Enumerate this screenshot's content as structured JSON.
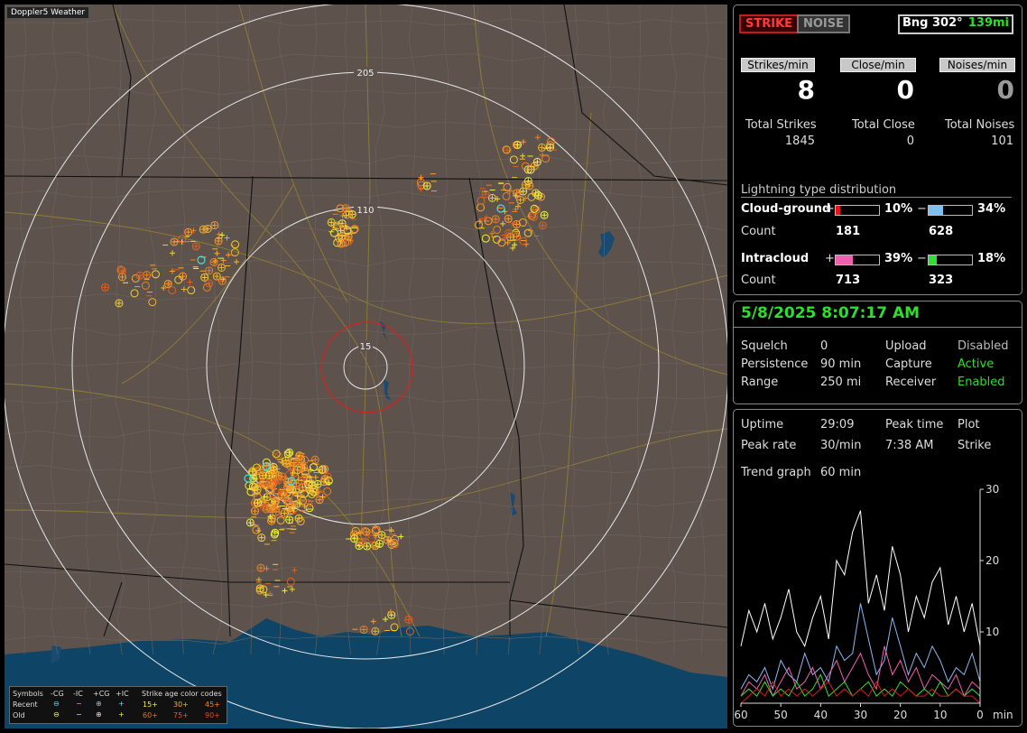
{
  "app": {
    "title": "Doppler5 Weather"
  },
  "map": {
    "range_rings": [
      "205",
      "110",
      "15"
    ],
    "legend": {
      "symbols_label": "Symbols",
      "cols": [
        "-CG",
        "-IC",
        "+CG",
        "+IC"
      ],
      "age_title": "Strike age color codes",
      "recent_label": "Recent",
      "old_label": "Old",
      "recent_ages": [
        "15+",
        "30+",
        "45+"
      ],
      "old_ages": [
        "60+",
        "75+",
        "90+"
      ]
    }
  },
  "status": {
    "strike_label": "STRIKE",
    "noise_label": "NOISE",
    "bearing": "Bng 302°",
    "distance": "139mi",
    "rates": [
      {
        "label": "Strikes/min",
        "value": "8",
        "color": "#ffffff"
      },
      {
        "label": "Close/min",
        "value": "0",
        "color": "#ffffff"
      },
      {
        "label": "Noises/min",
        "value": "0",
        "color": "#9a9a9a"
      }
    ],
    "totals": [
      {
        "label": "Total Strikes",
        "value": "1845"
      },
      {
        "label": "Total Close",
        "value": "0"
      },
      {
        "label": "Total Noises",
        "value": "101"
      }
    ]
  },
  "distribution": {
    "title": "Lightning type distribution",
    "cloud_ground": {
      "label": "Cloud-ground",
      "pos_sign": "+",
      "pos_pct": "10%",
      "pos_frac": 0.1,
      "pos_color": "#e01818",
      "neg_sign": "−",
      "neg_pct": "34%",
      "neg_frac": 0.34,
      "neg_color": "#7ec0f0",
      "count_label": "Count",
      "pos_count": "181",
      "neg_count": "628"
    },
    "intracloud": {
      "label": "Intracloud",
      "pos_sign": "+",
      "pos_pct": "39%",
      "pos_frac": 0.39,
      "pos_color": "#f060b0",
      "neg_sign": "−",
      "neg_pct": "18%",
      "neg_frac": 0.18,
      "neg_color": "#30e030",
      "count_label": "Count",
      "pos_count": "713",
      "neg_count": "323"
    }
  },
  "settings": {
    "datetime": "5/8/2025 8:07:17 AM",
    "rows": [
      {
        "k1": "Squelch",
        "v1": "0",
        "k2": "Upload",
        "v2": "Disabled",
        "green": false
      },
      {
        "k1": "Persistence",
        "v1": "90 min",
        "k2": "Capture",
        "v2": "Active",
        "green": true
      },
      {
        "k1": "Range",
        "v1": "250 mi",
        "k2": "Receiver",
        "v2": "Enabled",
        "green": true
      }
    ]
  },
  "trend": {
    "rows": [
      {
        "k1": "Uptime",
        "v1": "29:09",
        "k2": "Peak time",
        "v2": "Plot"
      },
      {
        "k1": "Peak rate",
        "v1": "30/min",
        "k2": "7:38 AM",
        "v2": "Strike"
      }
    ],
    "trend_label": "Trend graph",
    "trend_value": "60 min",
    "y_ticks": [
      "30",
      "20",
      "10"
    ],
    "x_ticks": [
      "60",
      "50",
      "40",
      "30",
      "20",
      "10",
      "0"
    ],
    "x_unit": "min"
  },
  "chart_data": {
    "type": "line",
    "x": [
      60,
      58,
      56,
      54,
      52,
      50,
      48,
      46,
      44,
      42,
      40,
      38,
      36,
      34,
      32,
      30,
      28,
      26,
      24,
      22,
      20,
      18,
      16,
      14,
      12,
      10,
      8,
      6,
      4,
      2,
      0
    ],
    "ylim": [
      0,
      30
    ],
    "xlim": [
      60,
      0
    ],
    "series": [
      {
        "color": "#ffffff",
        "values": [
          8,
          13,
          10,
          14,
          9,
          12,
          16,
          10,
          8,
          12,
          15,
          9,
          20,
          18,
          24,
          27,
          14,
          18,
          13,
          22,
          18,
          10,
          15,
          12,
          17,
          19,
          11,
          15,
          10,
          14,
          8
        ]
      },
      {
        "color": "#8ab8f0",
        "values": [
          2,
          4,
          3,
          5,
          2,
          6,
          4,
          3,
          7,
          4,
          5,
          3,
          8,
          6,
          7,
          14,
          9,
          4,
          6,
          12,
          8,
          4,
          7,
          5,
          8,
          6,
          3,
          5,
          4,
          7,
          3
        ]
      },
      {
        "color": "#f060b0",
        "values": [
          1,
          3,
          2,
          4,
          1,
          3,
          5,
          2,
          3,
          5,
          2,
          4,
          6,
          3,
          5,
          7,
          4,
          2,
          8,
          4,
          6,
          3,
          5,
          2,
          4,
          3,
          2,
          4,
          1,
          3,
          2
        ]
      },
      {
        "color": "#30e030",
        "values": [
          1,
          2,
          1,
          3,
          1,
          2,
          1,
          3,
          1,
          2,
          4,
          1,
          2,
          3,
          1,
          2,
          3,
          1,
          2,
          1,
          3,
          2,
          1,
          2,
          1,
          3,
          1,
          2,
          1,
          2,
          1
        ]
      },
      {
        "color": "#e01818",
        "values": [
          0,
          1,
          2,
          1,
          3,
          1,
          2,
          1,
          2,
          1,
          2,
          3,
          1,
          2,
          1,
          2,
          1,
          3,
          1,
          2,
          1,
          2,
          1,
          1,
          2,
          1,
          1,
          2,
          1,
          1,
          0
        ]
      }
    ]
  }
}
